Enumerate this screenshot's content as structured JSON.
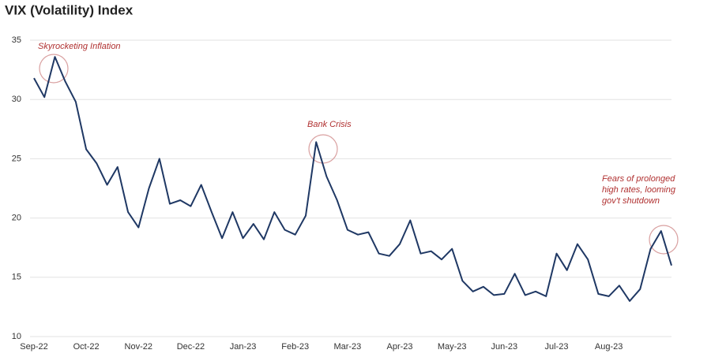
{
  "chart_data": {
    "type": "line",
    "title": "VIX (Volatility) Index",
    "categories": [
      "Sep-22",
      null,
      null,
      null,
      null,
      "Oct-22",
      null,
      null,
      null,
      null,
      "Nov-22",
      null,
      null,
      null,
      null,
      "Dec-22",
      null,
      null,
      null,
      null,
      "Jan-23",
      null,
      null,
      null,
      null,
      "Feb-23",
      null,
      null,
      null,
      null,
      "Mar-23",
      null,
      null,
      null,
      null,
      "Apr-23",
      null,
      null,
      null,
      null,
      "May-23",
      null,
      null,
      null,
      null,
      "Jun-23",
      null,
      null,
      null,
      null,
      "Jul-23",
      null,
      null,
      null,
      null,
      "Aug-23",
      null,
      null,
      null,
      null,
      null,
      null
    ],
    "values": [
      31.8,
      30.2,
      33.6,
      31.5,
      29.8,
      25.8,
      24.6,
      22.8,
      24.3,
      20.5,
      19.2,
      22.5,
      25.0,
      21.2,
      21.5,
      21.0,
      22.8,
      20.5,
      18.3,
      20.5,
      18.3,
      19.5,
      18.2,
      20.5,
      19.0,
      18.6,
      20.2,
      26.4,
      23.5,
      21.5,
      19.0,
      18.6,
      18.8,
      17.0,
      16.8,
      17.8,
      19.8,
      17.0,
      17.2,
      16.5,
      17.4,
      14.7,
      13.8,
      14.2,
      13.5,
      13.6,
      15.3,
      13.5,
      13.8,
      13.4,
      17.0,
      15.6,
      17.8,
      16.5,
      13.6,
      13.4,
      14.3,
      13.0,
      14.0,
      17.4,
      18.9,
      16.0
    ],
    "color": "#1f3864",
    "ylim": [
      10,
      35
    ],
    "yticks": [
      10,
      15,
      20,
      25,
      30,
      35
    ],
    "grid": true,
    "annotations": [
      "Skyrocketing Inflation",
      "Bank Crisis",
      [
        "Fears of prolonged",
        "high rates, looming",
        "gov't shutdown"
      ]
    ]
  }
}
